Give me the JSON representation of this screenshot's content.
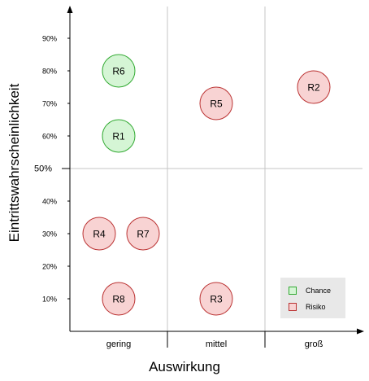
{
  "chart_data": {
    "type": "scatter",
    "xlabel": "Auswirkung",
    "ylabel": "Eintrittswahrscheinlichkeit",
    "x_categories": [
      "gering",
      "mittel",
      "groß"
    ],
    "y_ticks": [
      "10%",
      "20%",
      "30%",
      "40%",
      "50%",
      "60%",
      "70%",
      "80%",
      "90%"
    ],
    "y_range": [
      0,
      100
    ],
    "threshold_line": 50,
    "grid": true,
    "legend_position": "bottom-right",
    "legend": [
      {
        "name": "Chance",
        "fill": "#d5f5d5",
        "stroke": "#33aa33"
      },
      {
        "name": "Risiko",
        "fill": "#f8d3d3",
        "stroke": "#bb3333"
      }
    ],
    "points": [
      {
        "label": "R6",
        "category": "gering",
        "offset": 0,
        "y": 80,
        "kind": "Chance"
      },
      {
        "label": "R1",
        "category": "gering",
        "offset": 0,
        "y": 60,
        "kind": "Chance"
      },
      {
        "label": "R4",
        "category": "gering",
        "offset": -0.2,
        "y": 30,
        "kind": "Risiko"
      },
      {
        "label": "R7",
        "category": "gering",
        "offset": 0.25,
        "y": 30,
        "kind": "Risiko"
      },
      {
        "label": "R8",
        "category": "gering",
        "offset": 0,
        "y": 10,
        "kind": "Risiko"
      },
      {
        "label": "R5",
        "category": "mittel",
        "offset": 0,
        "y": 70,
        "kind": "Risiko"
      },
      {
        "label": "R3",
        "category": "mittel",
        "offset": 0,
        "y": 10,
        "kind": "Risiko"
      },
      {
        "label": "R2",
        "category": "groß",
        "offset": 0,
        "y": 75,
        "kind": "Risiko"
      }
    ]
  }
}
